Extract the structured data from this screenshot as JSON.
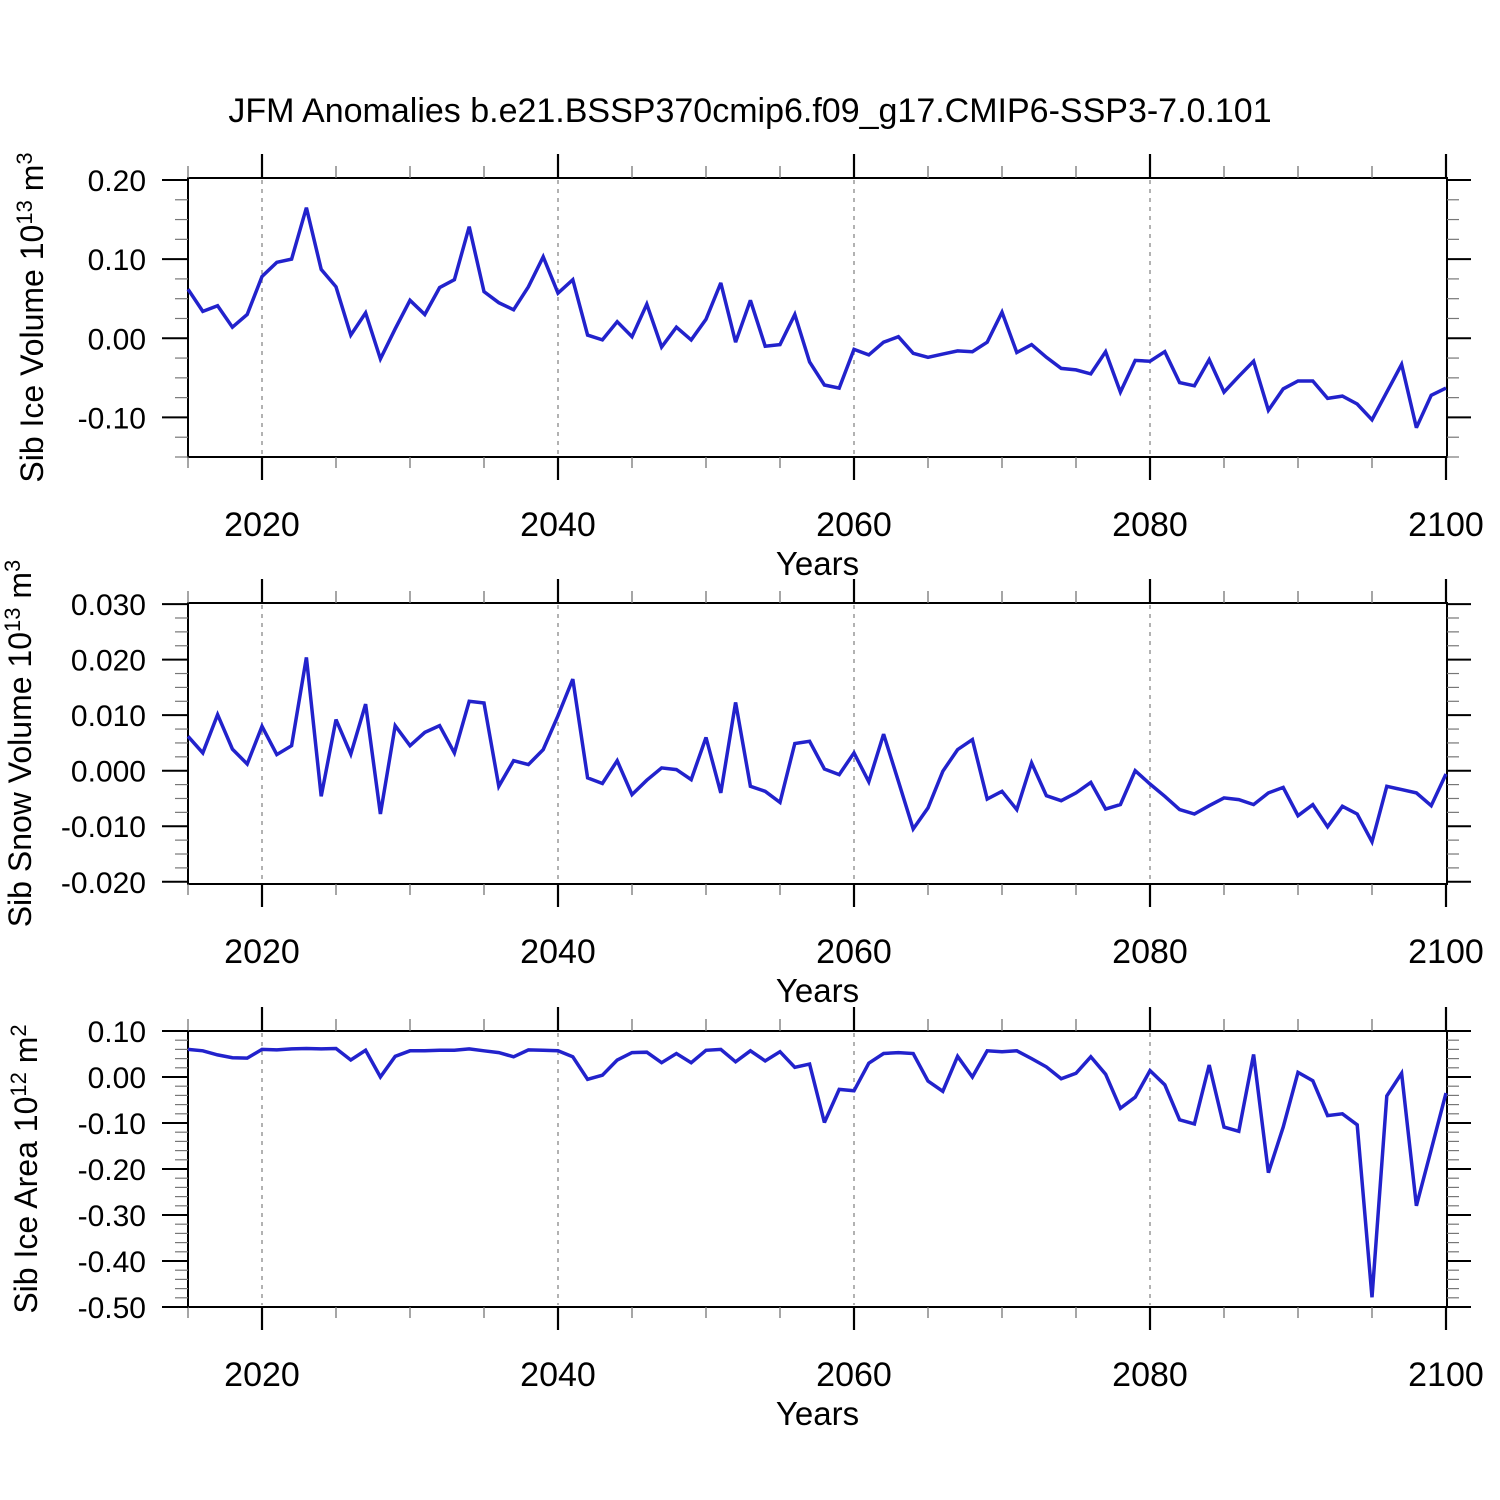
{
  "title": "JFM Anomalies b.e21.BSSP370cmip6.f09_g17.CMIP6-SSP3-7.0.101",
  "colors": {
    "line": "#2222cc",
    "axis": "#000000",
    "minor_tick": "#777777",
    "grid": "#999999",
    "background": "#ffffff",
    "text": "#000000"
  },
  "x_axis": {
    "label": "Years",
    "min": 2015,
    "max": 2100,
    "major_ticks": [
      2020,
      2040,
      2060,
      2080,
      2100
    ],
    "major_tick_labels": [
      "2020",
      "2040",
      "2060",
      "2080",
      "2100"
    ],
    "minor_step": 5,
    "gridlines": [
      2020,
      2040,
      2060,
      2080
    ]
  },
  "chart_data": [
    {
      "type": "line",
      "name": "sib-ice-volume",
      "title": "",
      "xlabel": "Years",
      "ylabel": "Sib Ice Volume 10^13 m^3",
      "ylabel_parts": [
        {
          "text": "Sib Ice Volume 10",
          "sup": false
        },
        {
          "text": "13",
          "sup": true
        },
        {
          "text": " m",
          "sup": false
        },
        {
          "text": "3",
          "sup": true
        }
      ],
      "ylim": [
        -0.15,
        0.2025
      ],
      "y_major_ticks": [
        {
          "value": 0.2,
          "label": "0.20"
        },
        {
          "value": 0.1,
          "label": "0.10"
        },
        {
          "value": 0.0,
          "label": "0.00"
        },
        {
          "value": -0.1,
          "label": "-0.10"
        }
      ],
      "y_minor_step": 0.025,
      "x_start": 2015,
      "x_step": 1,
      "values": [
        0.062,
        0.034,
        0.041,
        0.014,
        0.03,
        0.078,
        0.096,
        0.1,
        0.165,
        0.087,
        0.065,
        0.004,
        0.032,
        -0.026,
        0.012,
        0.048,
        0.03,
        0.064,
        0.074,
        0.141,
        0.059,
        0.045,
        0.036,
        0.065,
        0.103,
        0.057,
        0.074,
        0.004,
        -0.002,
        0.021,
        0.002,
        0.043,
        -0.011,
        0.014,
        -0.002,
        0.024,
        0.07,
        -0.005,
        0.048,
        -0.01,
        -0.008,
        0.03,
        -0.03,
        -0.059,
        -0.063,
        -0.014,
        -0.021,
        -0.005,
        0.002,
        -0.019,
        -0.024,
        -0.02,
        -0.016,
        -0.017,
        -0.005,
        0.033,
        -0.018,
        -0.008,
        -0.024,
        -0.038,
        -0.04,
        -0.045,
        -0.017,
        -0.068,
        -0.028,
        -0.029,
        -0.017,
        -0.056,
        -0.06,
        -0.027,
        -0.068,
        -0.048,
        -0.029,
        -0.091,
        -0.064,
        -0.054,
        -0.054,
        -0.076,
        -0.073,
        -0.083,
        -0.103,
        -0.068,
        -0.033,
        -0.113,
        -0.072,
        -0.063
      ]
    },
    {
      "type": "line",
      "name": "sib-snow-volume",
      "title": "",
      "xlabel": "Years",
      "ylabel": "Sib Snow Volume 10^13 m^3",
      "ylabel_parts": [
        {
          "text": "Sib Snow Volume 10",
          "sup": false
        },
        {
          "text": "13",
          "sup": true
        },
        {
          "text": " m",
          "sup": false
        },
        {
          "text": "3",
          "sup": true
        }
      ],
      "ylim": [
        -0.0204,
        0.0302
      ],
      "y_major_ticks": [
        {
          "value": 0.03,
          "label": "0.030"
        },
        {
          "value": 0.02,
          "label": "0.020"
        },
        {
          "value": 0.01,
          "label": "0.010"
        },
        {
          "value": 0.0,
          "label": "0.000"
        },
        {
          "value": -0.01,
          "label": "-0.010"
        },
        {
          "value": -0.02,
          "label": "-0.020"
        }
      ],
      "y_minor_step": 0.0025,
      "x_start": 2015,
      "x_step": 1,
      "values": [
        0.0062,
        0.0032,
        0.0101,
        0.0039,
        0.0012,
        0.008,
        0.0029,
        0.0045,
        0.0204,
        -0.0046,
        0.0092,
        0.003,
        0.012,
        -0.0078,
        0.0081,
        0.0045,
        0.0069,
        0.0081,
        0.0032,
        0.0125,
        0.0122,
        -0.0028,
        0.0018,
        0.0011,
        0.0038,
        0.0099,
        0.0165,
        -0.0013,
        -0.0023,
        0.0018,
        -0.0043,
        -0.0017,
        0.0005,
        0.0002,
        -0.0016,
        0.006,
        -0.004,
        0.0123,
        -0.0028,
        -0.0037,
        -0.0057,
        0.0049,
        0.0053,
        0.0003,
        -0.0007,
        0.0032,
        -0.002,
        0.0066,
        -0.0019,
        -0.0105,
        -0.0067,
        -0.0001,
        0.0038,
        0.0056,
        -0.0051,
        -0.0037,
        -0.007,
        0.0014,
        -0.0045,
        -0.0054,
        -0.004,
        -0.0021,
        -0.0069,
        -0.0061,
        0.0,
        -0.0024,
        -0.0046,
        -0.007,
        -0.0078,
        -0.0063,
        -0.0049,
        -0.0052,
        -0.0061,
        -0.004,
        -0.003,
        -0.0081,
        -0.0061,
        -0.0101,
        -0.0064,
        -0.0078,
        -0.0128,
        -0.0028,
        -0.0034,
        -0.004,
        -0.0063,
        -0.0006
      ]
    },
    {
      "type": "line",
      "name": "sib-ice-area",
      "title": "",
      "xlabel": "Years",
      "ylabel": "Sib Ice Area 10^12 m^2",
      "ylabel_parts": [
        {
          "text": "Sib Ice Area 10",
          "sup": false
        },
        {
          "text": "12",
          "sup": true
        },
        {
          "text": " m",
          "sup": false
        },
        {
          "text": "2",
          "sup": true
        }
      ],
      "ylim": [
        -0.5,
        0.1
      ],
      "y_major_ticks": [
        {
          "value": 0.1,
          "label": "0.10"
        },
        {
          "value": 0.0,
          "label": "0.00"
        },
        {
          "value": -0.1,
          "label": "-0.10"
        },
        {
          "value": -0.2,
          "label": "-0.20"
        },
        {
          "value": -0.3,
          "label": "-0.30"
        },
        {
          "value": -0.4,
          "label": "-0.40"
        },
        {
          "value": -0.5,
          "label": "-0.50"
        }
      ],
      "y_minor_step": 0.02,
      "x_start": 2015,
      "x_step": 1,
      "values": [
        0.06,
        0.057,
        0.048,
        0.042,
        0.041,
        0.06,
        0.059,
        0.061,
        0.062,
        0.061,
        0.062,
        0.037,
        0.058,
        0.0,
        0.045,
        0.057,
        0.057,
        0.058,
        0.058,
        0.061,
        0.057,
        0.053,
        0.044,
        0.059,
        0.058,
        0.057,
        0.044,
        -0.005,
        0.004,
        0.037,
        0.053,
        0.054,
        0.031,
        0.051,
        0.031,
        0.058,
        0.06,
        0.033,
        0.057,
        0.035,
        0.055,
        0.021,
        0.028,
        -0.099,
        -0.027,
        -0.03,
        0.03,
        0.051,
        0.053,
        0.051,
        -0.009,
        -0.031,
        0.045,
        0.0,
        0.057,
        0.055,
        0.057,
        0.04,
        0.022,
        -0.004,
        0.008,
        0.044,
        0.006,
        -0.068,
        -0.044,
        0.014,
        -0.017,
        -0.093,
        -0.102,
        0.026,
        -0.109,
        -0.118,
        0.049,
        -0.208,
        -0.109,
        0.01,
        -0.008,
        -0.084,
        -0.08,
        -0.104,
        -0.479,
        -0.041,
        0.008,
        -0.28,
        -0.158,
        -0.035
      ]
    }
  ]
}
